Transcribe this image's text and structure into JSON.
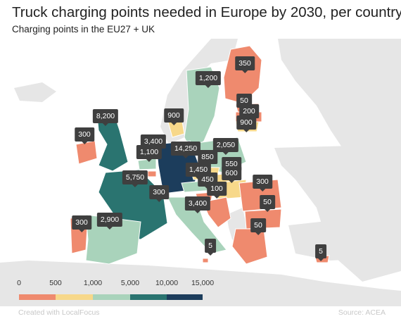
{
  "header": {
    "title": "Truck charging points needed in Europe by 2030, per country",
    "subtitle": "Charging points in the EU27 + UK"
  },
  "colors": {
    "band_0_500": "#ef8a6e",
    "band_500_1000": "#f7d88a",
    "band_1000_5000": "#a9d3bb",
    "band_5000_10000": "#2a7470",
    "band_10000_15000": "#1c3d5c",
    "non_eu_land": "#e6e6e6",
    "sea": "#ffffff"
  },
  "map": {
    "labels": [
      {
        "region": "Finland",
        "value": "350"
      },
      {
        "region": "Sweden",
        "value": "1,200"
      },
      {
        "region": "Estonia",
        "value": "50"
      },
      {
        "region": "Latvia",
        "value": "200"
      },
      {
        "region": "Lithuania",
        "value": "900"
      },
      {
        "region": "Denmark",
        "value": "900"
      },
      {
        "region": "United Kingdom",
        "value": "8,200"
      },
      {
        "region": "Ireland",
        "value": "300"
      },
      {
        "region": "Netherlands",
        "value": "3,400"
      },
      {
        "region": "Belgium",
        "value": "1,100"
      },
      {
        "region": "Germany",
        "value": "14,250"
      },
      {
        "region": "Poland",
        "value": "2,050"
      },
      {
        "region": "Czechia",
        "value": "850"
      },
      {
        "region": "Austria",
        "value": "1,450"
      },
      {
        "region": "Slovakia",
        "value": "550"
      },
      {
        "region": "Hungary",
        "value": "600"
      },
      {
        "region": "Slovenia",
        "value": "450"
      },
      {
        "region": "Croatia",
        "value": "100"
      },
      {
        "region": "France",
        "value": "5,750"
      },
      {
        "region": "Luxembourg",
        "value": "300"
      },
      {
        "region": "Italy",
        "value": "3,400"
      },
      {
        "region": "Romania",
        "value": "300"
      },
      {
        "region": "Bulgaria",
        "value": "50"
      },
      {
        "region": "Greece",
        "value": "50"
      },
      {
        "region": "Portugal",
        "value": "300"
      },
      {
        "region": "Spain",
        "value": "2,900"
      },
      {
        "region": "Malta",
        "value": "5"
      },
      {
        "region": "Cyprus",
        "value": "5"
      }
    ]
  },
  "legend": {
    "ticks": [
      "0",
      "500",
      "1,000",
      "5,000",
      "10,000",
      "15,000"
    ]
  },
  "footer": {
    "credit": "Created with LocalFocus",
    "source": "Source: ACEA"
  }
}
